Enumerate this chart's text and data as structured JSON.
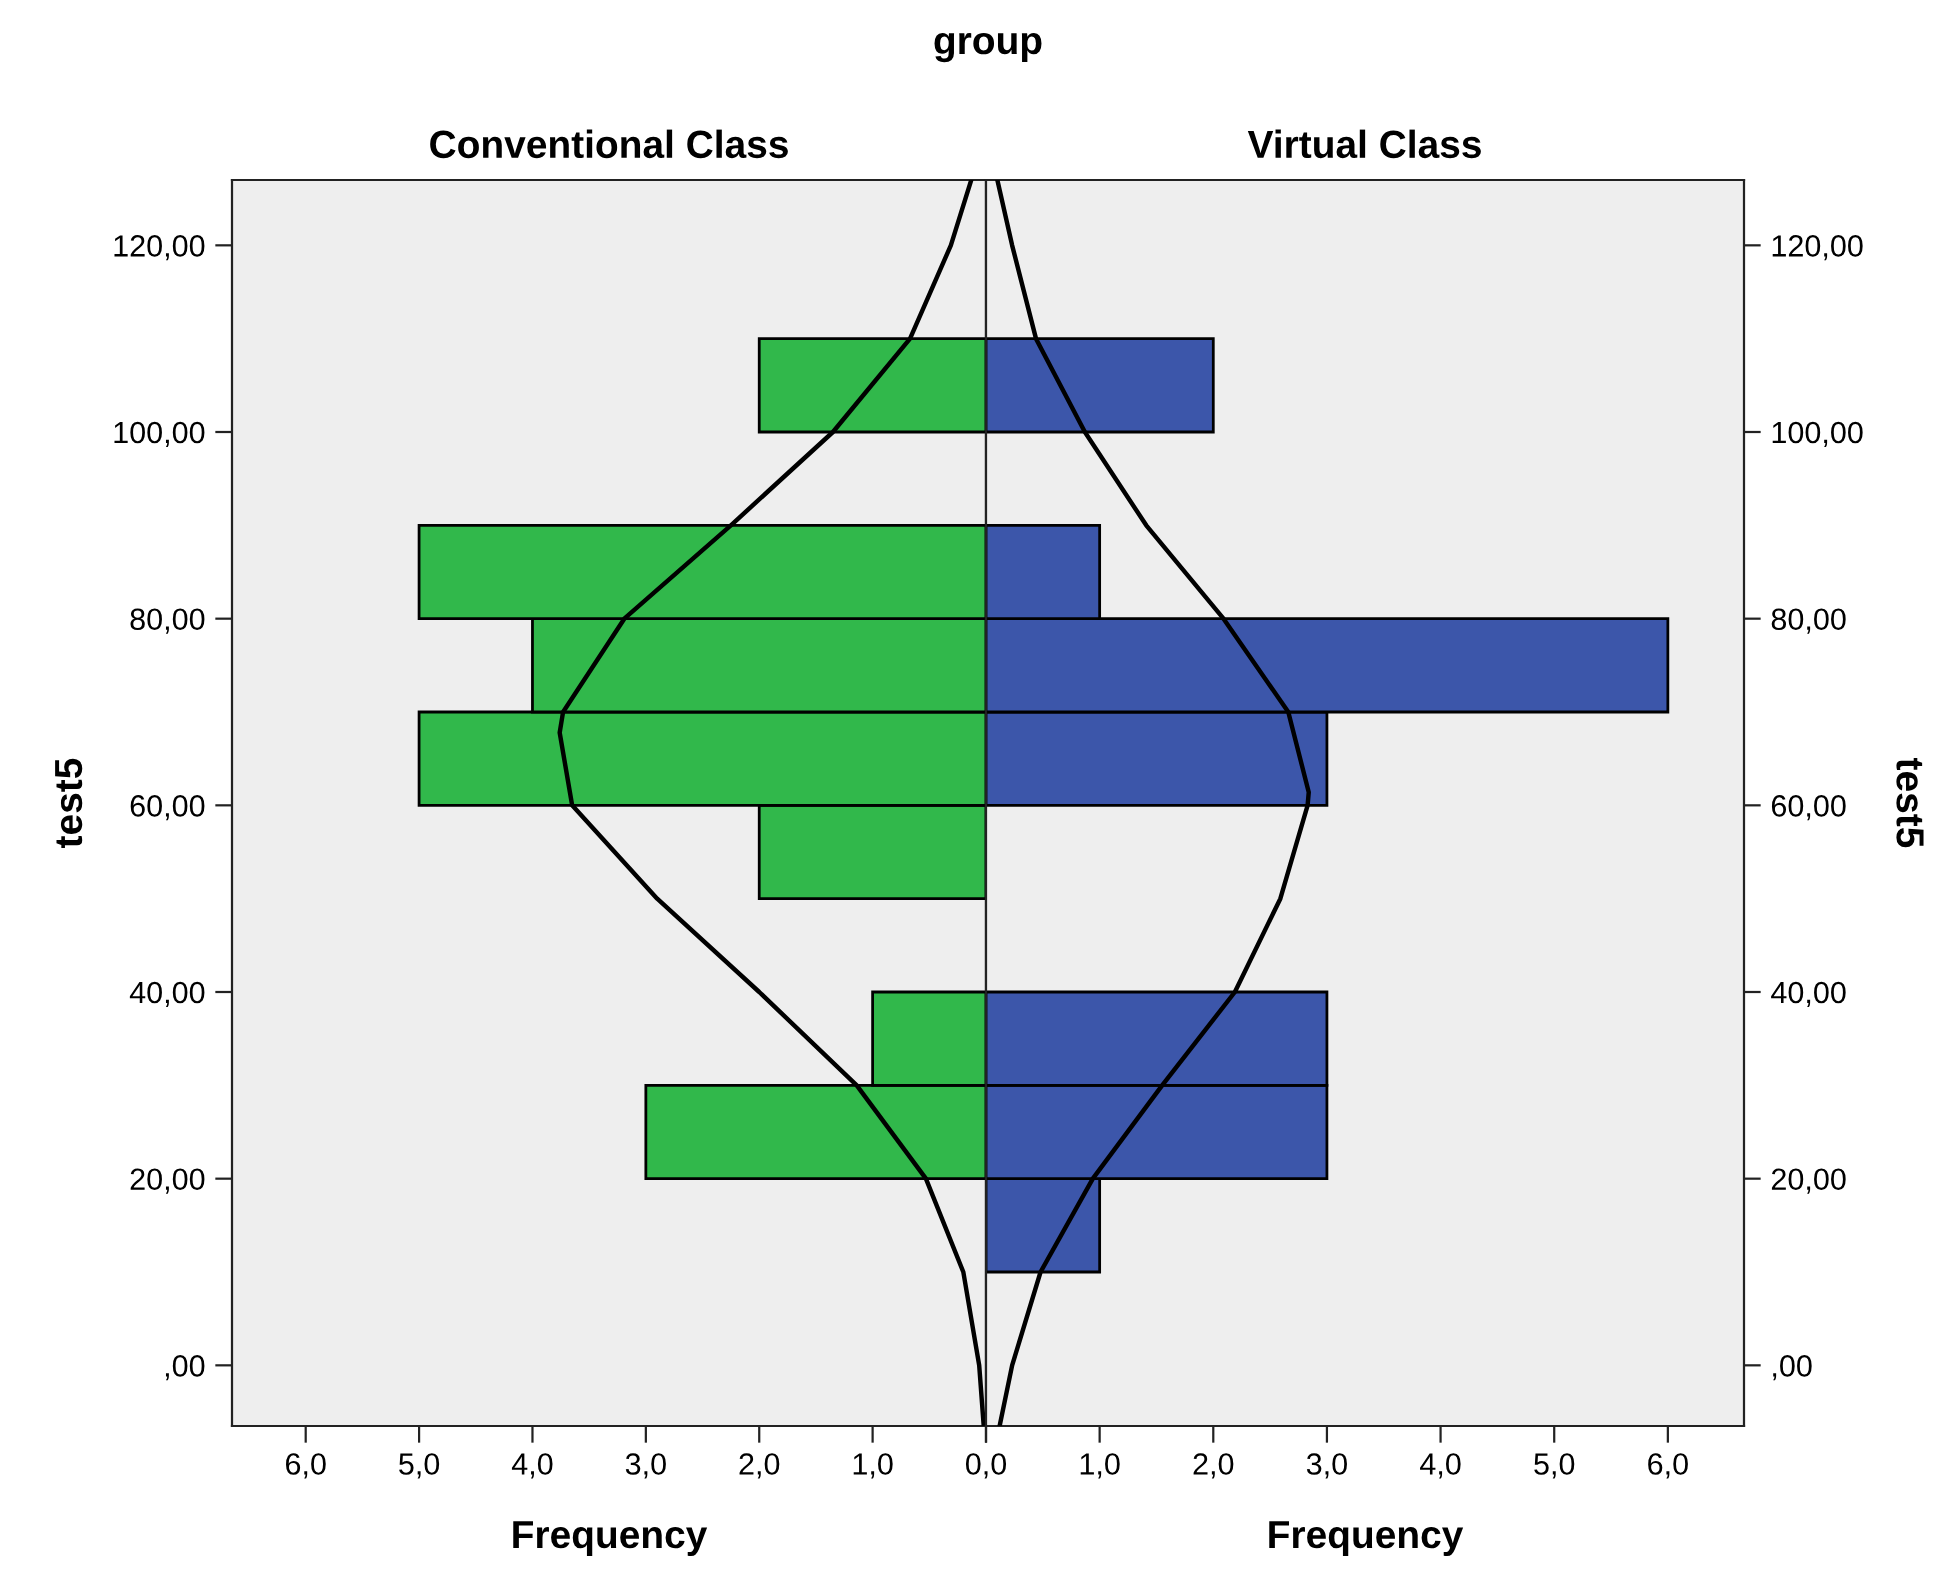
{
  "chart_data": [
    {
      "type": "histogram",
      "orientation": "horizontal",
      "title": "Conventional Class",
      "xlabel": "Frequency",
      "ylabel": "test5",
      "annotations": [
        "group"
      ],
      "grid": false,
      "legend": false,
      "bins": [
        20,
        30,
        40,
        50,
        60,
        70,
        80,
        90,
        100,
        110
      ],
      "series": [
        {
          "type": "histogram",
          "color": "#31b84b",
          "values": [
            3,
            1,
            0,
            2,
            5,
            4,
            5,
            0,
            2
          ]
        },
        {
          "type": "line",
          "color": "#000000",
          "x": [
            -6.5,
            0,
            10,
            20,
            30,
            40,
            50,
            60,
            67.8,
            70,
            80,
            90,
            100,
            110,
            120,
            127
          ],
          "values": [
            0.02,
            0.06,
            0.2,
            0.53,
            1.14,
            2.0,
            2.9,
            3.65,
            3.76,
            3.73,
            3.19,
            2.25,
            1.35,
            0.67,
            0.31,
            0.13
          ]
        }
      ],
      "xlim": [
        6.65,
        0
      ],
      "xticks": [
        {
          "value": 6,
          "label": "6,0"
        },
        {
          "value": 5,
          "label": "5,0"
        },
        {
          "value": 4,
          "label": "4,0"
        },
        {
          "value": 3,
          "label": "3,0"
        },
        {
          "value": 2,
          "label": "2,0"
        },
        {
          "value": 1,
          "label": "1,0"
        },
        {
          "value": 0,
          "label": "0,0"
        }
      ],
      "ylim": [
        -6.5,
        127
      ],
      "yticks": [
        {
          "value": 0,
          "label": ",00"
        },
        {
          "value": 20,
          "label": "20,00"
        },
        {
          "value": 40,
          "label": "40,00"
        },
        {
          "value": 60,
          "label": "60,00"
        },
        {
          "value": 80,
          "label": "80,00"
        },
        {
          "value": 100,
          "label": "100,00"
        },
        {
          "value": 120,
          "label": "120,00"
        }
      ]
    },
    {
      "type": "histogram",
      "orientation": "horizontal",
      "title": "Virtual Class",
      "xlabel": "Frequency",
      "ylabel": "test5",
      "grid": false,
      "legend": false,
      "bins": [
        10,
        20,
        30,
        40,
        50,
        60,
        70,
        80,
        90,
        100,
        110
      ],
      "series": [
        {
          "type": "histogram",
          "color": "#3c56aa",
          "values": [
            1,
            3,
            3,
            0,
            0,
            3,
            6,
            1,
            0,
            2
          ]
        },
        {
          "type": "line",
          "color": "#000000",
          "x": [
            -6.5,
            0,
            10,
            20,
            30,
            40,
            50,
            60,
            61.4,
            70,
            80,
            90,
            100,
            110,
            120,
            127
          ],
          "values": [
            0.12,
            0.23,
            0.48,
            0.94,
            1.55,
            2.19,
            2.59,
            2.83,
            2.84,
            2.66,
            2.09,
            1.41,
            0.87,
            0.44,
            0.23,
            0.1
          ]
        }
      ],
      "xlim": [
        0,
        6.67
      ],
      "xticks": [
        {
          "value": 0,
          "label": null
        },
        {
          "value": 1,
          "label": "1,0"
        },
        {
          "value": 2,
          "label": "2,0"
        },
        {
          "value": 3,
          "label": "3,0"
        },
        {
          "value": 4,
          "label": "4,0"
        },
        {
          "value": 5,
          "label": "5,0"
        },
        {
          "value": 6,
          "label": "6,0"
        }
      ],
      "ylim": [
        -6.5,
        127
      ],
      "yticks": [
        {
          "value": 0,
          "label": ",00"
        },
        {
          "value": 20,
          "label": "20,00"
        },
        {
          "value": 40,
          "label": "40,00"
        },
        {
          "value": 60,
          "label": "60,00"
        },
        {
          "value": 80,
          "label": "80,00"
        },
        {
          "value": 100,
          "label": "100,00"
        },
        {
          "value": 120,
          "label": "120,00"
        }
      ]
    }
  ]
}
